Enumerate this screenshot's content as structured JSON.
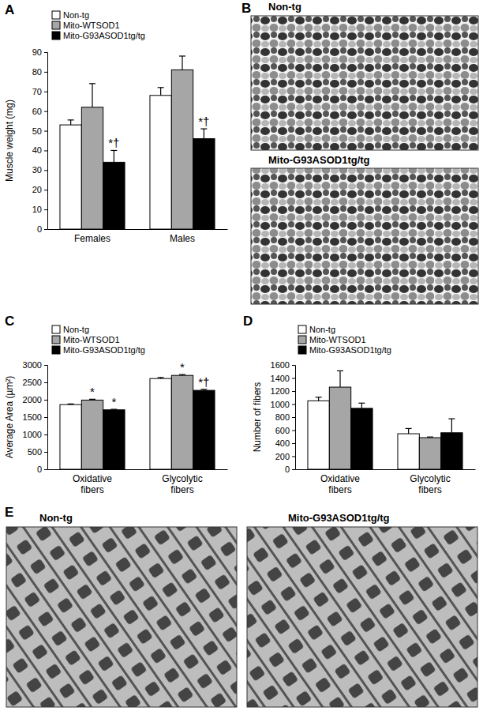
{
  "chart_data": [
    {
      "panel": "A",
      "type": "bar",
      "ylabel": "Muscle weight (mg)",
      "categories": [
        "Females",
        "Males"
      ],
      "series": [
        {
          "name": "Non-tg",
          "color": "#ffffff",
          "values": [
            53,
            68
          ],
          "errors": [
            2.5,
            4
          ]
        },
        {
          "name": "Mito-WTSOD1",
          "color": "#a6a6a6",
          "values": [
            62,
            81
          ],
          "errors": [
            12,
            7
          ]
        },
        {
          "name": "Mito-G93ASOD1tg/tg",
          "color": "#000000",
          "values": [
            34,
            46
          ],
          "errors": [
            6,
            5
          ],
          "annotations": [
            "*†",
            "*†"
          ]
        }
      ],
      "ylim": [
        0,
        90
      ],
      "yticks": [
        0,
        10,
        20,
        30,
        40,
        50,
        60,
        70,
        80,
        90
      ],
      "legend": "upper left"
    },
    {
      "panel": "C",
      "type": "bar",
      "ylabel": "Average Area (µm²)",
      "categories": [
        "Oxidative fibers",
        "Glycolytic fibers"
      ],
      "series": [
        {
          "name": "Non-tg",
          "color": "#ffffff",
          "values": [
            1860,
            2610
          ],
          "errors": [
            20,
            30
          ]
        },
        {
          "name": "Mito-WTSOD1",
          "color": "#a6a6a6",
          "values": [
            1990,
            2700
          ],
          "errors": [
            25,
            25
          ],
          "annotations": [
            "*",
            "*"
          ]
        },
        {
          "name": "Mito-G93ASOD1tg/tg",
          "color": "#000000",
          "values": [
            1710,
            2270
          ],
          "errors": [
            15,
            30
          ],
          "annotations": [
            "*",
            "*†"
          ]
        }
      ],
      "ylim": [
        0,
        3000
      ],
      "yticks": [
        0,
        500,
        1000,
        1500,
        2000,
        2500,
        3000
      ],
      "legend": "upper left"
    },
    {
      "panel": "D",
      "type": "bar",
      "ylabel": "Number of fibers",
      "categories": [
        "Oxidative fibers",
        "Glycolytic fibers"
      ],
      "series": [
        {
          "name": "Non-tg",
          "color": "#ffffff",
          "values": [
            1050,
            545
          ],
          "errors": [
            55,
            80
          ]
        },
        {
          "name": "Mito-WTSOD1",
          "color": "#a6a6a6",
          "values": [
            1260,
            485
          ],
          "errors": [
            250,
            10
          ]
        },
        {
          "name": "Mito-G93ASOD1tg/tg",
          "color": "#000000",
          "values": [
            935,
            560
          ],
          "errors": [
            80,
            215
          ]
        }
      ],
      "ylim": [
        0,
        1600
      ],
      "yticks": [
        0,
        200,
        400,
        600,
        800,
        1000,
        1200,
        1400,
        1600
      ],
      "legend": "upper left"
    }
  ],
  "images": [
    {
      "panel": "B",
      "labels": [
        "Non-tg",
        "Mito-G93ASOD1tg/tg"
      ]
    },
    {
      "panel": "E",
      "labels": [
        "Non-tg",
        "Mito-G93ASOD1tg/tg"
      ]
    }
  ]
}
